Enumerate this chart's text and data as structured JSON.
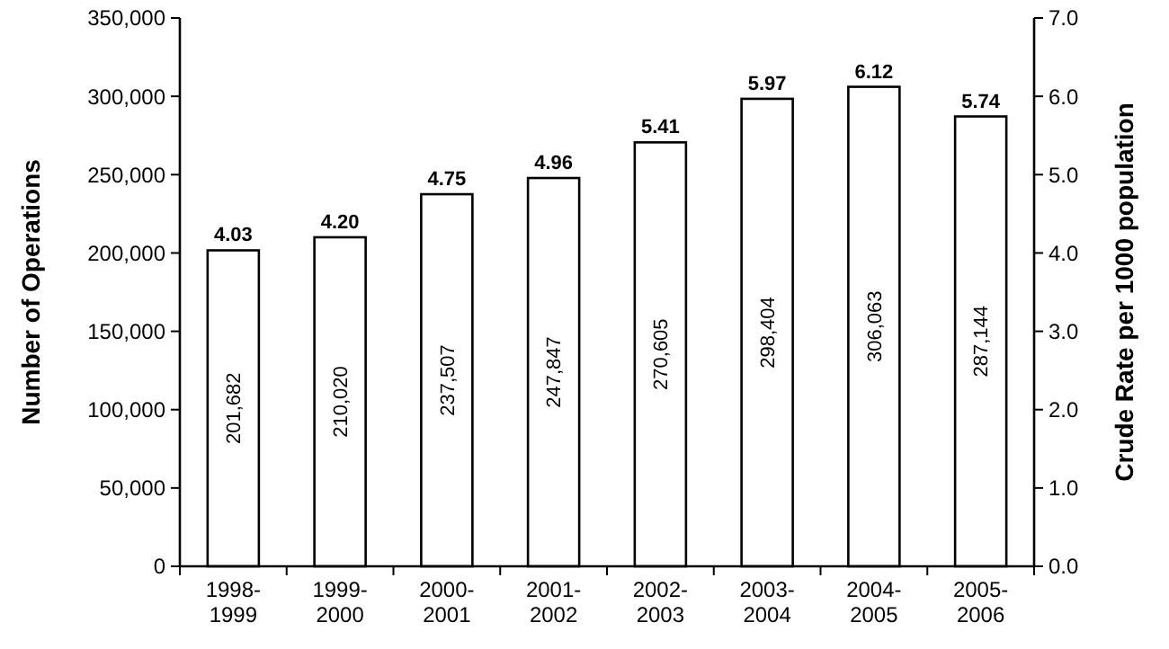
{
  "chart_data": {
    "type": "bar",
    "ylabel": "Number of Operations",
    "y2label": "Crude Rate per 1000 population",
    "categories": [
      "1998-1999",
      "1999-2000",
      "2000-2001",
      "2001-2002",
      "2002-2003",
      "2003-2004",
      "2004-2005",
      "2005-2006"
    ],
    "series": [
      {
        "color": "#ffffff",
        "values": [
          201682,
          210020,
          237507,
          247847,
          270605,
          298404,
          306063,
          287144
        ],
        "value_labels": [
          "201,682",
          "210,020",
          "237,507",
          "247,847",
          "270,605",
          "298,404",
          "306,063",
          "287,144"
        ]
      }
    ],
    "annotations": [
      {
        "text": "4.03",
        "x": "1998-1999",
        "y": 201682
      },
      {
        "text": "4.20",
        "x": "1999-2000",
        "y": 210020
      },
      {
        "text": "4.75",
        "x": "2000-2001",
        "y": 237507
      },
      {
        "text": "4.96",
        "x": "2001-2002",
        "y": 247847
      },
      {
        "text": "5.41",
        "x": "2002-2003",
        "y": 270605
      },
      {
        "text": "5.97",
        "x": "2003-2004",
        "y": 298404
      },
      {
        "text": "6.12",
        "x": "2004-2005",
        "y": 306063
      },
      {
        "text": "5.74",
        "x": "2005-2006",
        "y": 287144
      }
    ],
    "ylim": [
      0,
      350000
    ],
    "yticks": [
      {
        "value": 0,
        "label": "0"
      },
      {
        "value": 50000,
        "label": "50,000"
      },
      {
        "value": 100000,
        "label": "100,000"
      },
      {
        "value": 150000,
        "label": "150,000"
      },
      {
        "value": 200000,
        "label": "200,000"
      },
      {
        "value": 250000,
        "label": "250,000"
      },
      {
        "value": 300000,
        "label": "300,000"
      },
      {
        "value": 350000,
        "label": "350,000"
      }
    ],
    "y2lim": [
      0,
      7
    ],
    "y2ticks": [
      {
        "value": 0,
        "label": "0.0"
      },
      {
        "value": 1,
        "label": "1.0"
      },
      {
        "value": 2,
        "label": "2.0"
      },
      {
        "value": 3,
        "label": "3.0"
      },
      {
        "value": 4,
        "label": "4.0"
      },
      {
        "value": 5,
        "label": "5.0"
      },
      {
        "value": 6,
        "label": "6.0"
      },
      {
        "value": 7,
        "label": "7.0"
      }
    ],
    "grid": false
  }
}
